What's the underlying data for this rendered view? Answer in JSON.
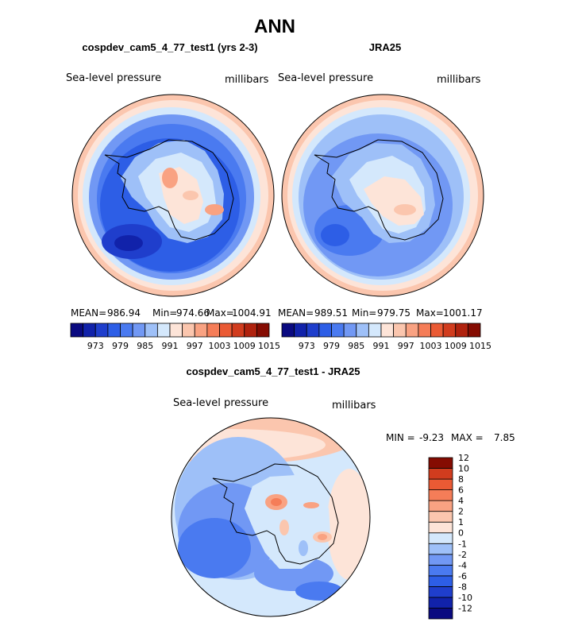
{
  "title": "ANN",
  "panels": [
    {
      "id": "model",
      "title": "cospdev_cam5_4_77_test1 (yrs 2-3)",
      "left_label": "Sea-level pressure",
      "right_label": "millibars",
      "stats": {
        "mean_label": "MEAN=",
        "mean": "986.94",
        "min_label": "Min=",
        "min": "974.66",
        "max_label": "Max=",
        "max": "1004.91"
      }
    },
    {
      "id": "obs",
      "title": "JRA25",
      "left_label": "Sea-level pressure",
      "right_label": "millibars",
      "stats": {
        "mean_label": "MEAN=",
        "mean": "989.51",
        "min_label": "Min=",
        "min": "979.75",
        "max_label": "Max=",
        "max": "1001.17"
      }
    }
  ],
  "diff_panel": {
    "title": "cospdev_cam5_4_77_test1 - JRA25",
    "left_label": "Sea-level pressure",
    "right_label": "millibars",
    "min_label": "MIN =",
    "min": "-9.23",
    "max_label": "MAX =",
    "max": "7.85"
  },
  "colorbar_abs": {
    "colors": [
      "#0a0a80",
      "#1122aa",
      "#1f3ecc",
      "#2d5ee6",
      "#4a7af0",
      "#7198f4",
      "#9ec0f8",
      "#d4e8fc",
      "#fde4d8",
      "#fbc6ae",
      "#f9a282",
      "#f57d58",
      "#ea5a34",
      "#d13c1e",
      "#b0220e",
      "#850c02"
    ],
    "tick_labels": [
      "973",
      "979",
      "985",
      "991",
      "997",
      "1003",
      "1009",
      "1015"
    ],
    "tick_boundary_index": [
      2,
      4,
      6,
      8,
      10,
      12,
      14,
      16
    ]
  },
  "colorbar_diff": {
    "colors": [
      "#0a0a80",
      "#1122aa",
      "#1f3ecc",
      "#2d5ee6",
      "#4a7af0",
      "#7198f4",
      "#9ec0f8",
      "#d4e8fc",
      "#fde4d8",
      "#fbc6ae",
      "#f9a282",
      "#f57d58",
      "#ea5a34",
      "#d13c1e",
      "#850c02"
    ],
    "tick_labels": [
      "-12",
      "-10",
      "-8",
      "-6",
      "-4",
      "-2",
      "-1",
      "0",
      "1",
      "2",
      "4",
      "6",
      "8",
      "10",
      "12"
    ]
  },
  "chart_data": {
    "type": "heatmap",
    "title": "ANN",
    "variable": "Sea-level pressure",
    "units": "millibars",
    "panels": [
      {
        "name": "cospdev_cam5_4_77_test1 (yrs 2-3)",
        "mean": 986.94,
        "min": 974.66,
        "max": 1004.91
      },
      {
        "name": "JRA25",
        "mean": 989.51,
        "min": 979.75,
        "max": 1001.17
      },
      {
        "name": "cospdev_cam5_4_77_test1 - JRA25",
        "min": -9.23,
        "max": 7.85
      }
    ],
    "abs_levels": [
      973,
      976,
      979,
      982,
      985,
      988,
      991,
      994,
      997,
      1000,
      1003,
      1006,
      1009,
      1012,
      1015
    ],
    "diff_levels": [
      -12,
      -10,
      -8,
      -6,
      -4,
      -2,
      -1,
      0,
      1,
      2,
      4,
      6,
      8,
      10,
      12
    ]
  }
}
